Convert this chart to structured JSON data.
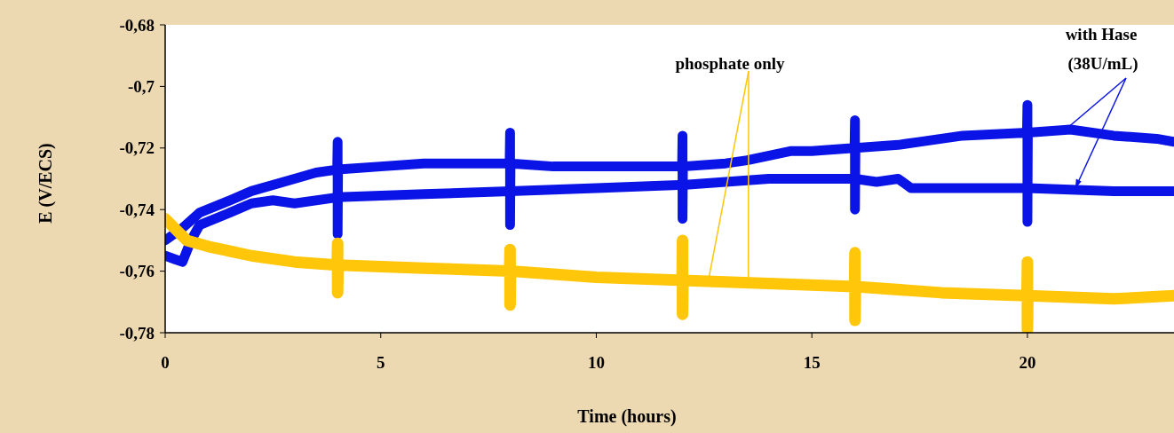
{
  "chart_data": {
    "type": "line",
    "xlabel": "Time (hours)",
    "ylabel": "E (V/ECS)",
    "xlim": [
      0,
      23.4
    ],
    "xticks": [
      0,
      5,
      10,
      15,
      20
    ],
    "ylim": [
      -0.78,
      -0.68
    ],
    "yticks": [
      {
        "value": -0.68,
        "label": "-0,68"
      },
      {
        "value": -0.7,
        "label": "-0,7"
      },
      {
        "value": -0.72,
        "label": "-0,72"
      },
      {
        "value": -0.74,
        "label": "-0,74"
      },
      {
        "value": -0.76,
        "label": "-0,76"
      },
      {
        "value": -0.78,
        "label": "-0,78"
      }
    ],
    "grid": false,
    "line_style": "solid",
    "annotations": [
      {
        "text": "phosphate only",
        "x": 12.6,
        "y": -0.763
      },
      {
        "text": "with Hase (38U/mL)",
        "x": 20.8,
        "y": -0.715
      }
    ],
    "series": [
      {
        "color": "#0a14e6",
        "x": [
          0,
          0.4,
          0.8,
          1.5,
          2,
          3,
          3.5,
          3.99,
          4,
          4,
          4.01,
          5,
          6,
          7,
          7.99,
          8,
          8,
          8.01,
          9,
          10,
          11,
          11.99,
          12,
          12,
          12.01,
          13,
          13.5,
          14.5,
          15,
          15.99,
          16,
          16,
          16.01,
          17,
          17.5,
          18.5,
          19.99,
          20,
          20,
          20.01,
          21,
          22,
          23,
          23.4
        ],
        "values": [
          -0.75,
          -0.746,
          -0.741,
          -0.737,
          -0.734,
          -0.73,
          -0.728,
          -0.727,
          -0.718,
          -0.748,
          -0.727,
          -0.726,
          -0.725,
          -0.725,
          -0.725,
          -0.715,
          -0.745,
          -0.725,
          -0.726,
          -0.726,
          -0.726,
          -0.726,
          -0.716,
          -0.743,
          -0.726,
          -0.725,
          -0.724,
          -0.721,
          -0.721,
          -0.72,
          -0.711,
          -0.74,
          -0.72,
          -0.719,
          -0.718,
          -0.716,
          -0.715,
          -0.706,
          -0.744,
          -0.715,
          -0.714,
          -0.716,
          -0.717,
          -0.718
        ]
      },
      {
        "color": "#0a14e6",
        "x": [
          0,
          0.2,
          0.4,
          0.6,
          0.8,
          1.5,
          2,
          2.5,
          3,
          4,
          6,
          8,
          10,
          12,
          14,
          16,
          16.5,
          17,
          17.3,
          18,
          20,
          22,
          23.4
        ],
        "values": [
          -0.755,
          -0.756,
          -0.757,
          -0.75,
          -0.745,
          -0.741,
          -0.738,
          -0.737,
          -0.738,
          -0.736,
          -0.735,
          -0.734,
          -0.733,
          -0.732,
          -0.73,
          -0.73,
          -0.731,
          -0.73,
          -0.733,
          -0.733,
          -0.733,
          -0.734,
          -0.734
        ]
      },
      {
        "color": "#ffc60a",
        "x": [
          0,
          0.5,
          1,
          2,
          3,
          3.99,
          4,
          4,
          4.01,
          6,
          7.99,
          8,
          8,
          8.01,
          10,
          11.99,
          12,
          12,
          12.01,
          14,
          15.99,
          16,
          16,
          16.01,
          18,
          19.99,
          20,
          20,
          20.01,
          22,
          23.4
        ],
        "values": [
          -0.743,
          -0.75,
          -0.752,
          -0.755,
          -0.757,
          -0.758,
          -0.751,
          -0.767,
          -0.758,
          -0.759,
          -0.76,
          -0.753,
          -0.771,
          -0.76,
          -0.762,
          -0.763,
          -0.75,
          -0.774,
          -0.763,
          -0.764,
          -0.765,
          -0.754,
          -0.776,
          -0.765,
          -0.767,
          -0.768,
          -0.757,
          -0.779,
          -0.768,
          -0.769,
          -0.768
        ]
      }
    ]
  }
}
